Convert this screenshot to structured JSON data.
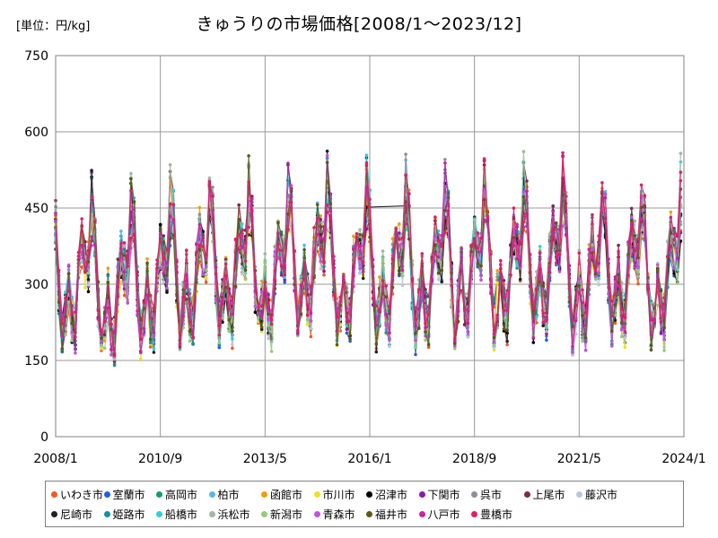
{
  "chart_data": {
    "type": "line",
    "title": "きゅうりの市場価格[2008/1～2023/12]",
    "unit_label": "[単位：円/kg]",
    "xlabel": "",
    "ylabel": "",
    "x_start": "2008/1",
    "x_end": "2024/1",
    "xticks": [
      "2008/1",
      "2010/9",
      "2013/5",
      "2016/1",
      "2018/9",
      "2021/5",
      "2024/1"
    ],
    "ylim": [
      0,
      750
    ],
    "yticks": [
      0,
      150,
      300,
      450,
      600,
      750
    ],
    "grid": true,
    "legend_position": "bottom",
    "monthly_base_profile": [
      420,
      285,
      200,
      245,
      300,
      230,
      210,
      320,
      380,
      350,
      335,
      420
    ],
    "series": [
      {
        "name": "いわき市",
        "color": "#f05a1e"
      },
      {
        "name": "室蘭市",
        "color": "#1f5fe0"
      },
      {
        "name": "高岡市",
        "color": "#139a75"
      },
      {
        "name": "柏市",
        "color": "#58b6ec"
      },
      {
        "name": "函館市",
        "color": "#e8a112"
      },
      {
        "name": "市川市",
        "color": "#f0e020"
      },
      {
        "name": "沼津市",
        "color": "#000000"
      },
      {
        "name": "下関市",
        "color": "#8b18a8"
      },
      {
        "name": "呉市",
        "color": "#8a8f99"
      },
      {
        "name": "上尾市",
        "color": "#7a2a4a"
      },
      {
        "name": "藤沢市",
        "color": "#b8c8dc"
      },
      {
        "name": "尼崎市",
        "color": "#222222"
      },
      {
        "name": "姫路市",
        "color": "#1590a0"
      },
      {
        "name": "船橋市",
        "color": "#30d0d8"
      },
      {
        "name": "浜松市",
        "color": "#a0b8a0"
      },
      {
        "name": "新潟市",
        "color": "#98c878"
      },
      {
        "name": "青森市",
        "color": "#c050e0"
      },
      {
        "name": "福井市",
        "color": "#5a5a18"
      },
      {
        "name": "八戸市",
        "color": "#d020a0"
      },
      {
        "name": "豊橋市",
        "color": "#e02060"
      }
    ]
  }
}
